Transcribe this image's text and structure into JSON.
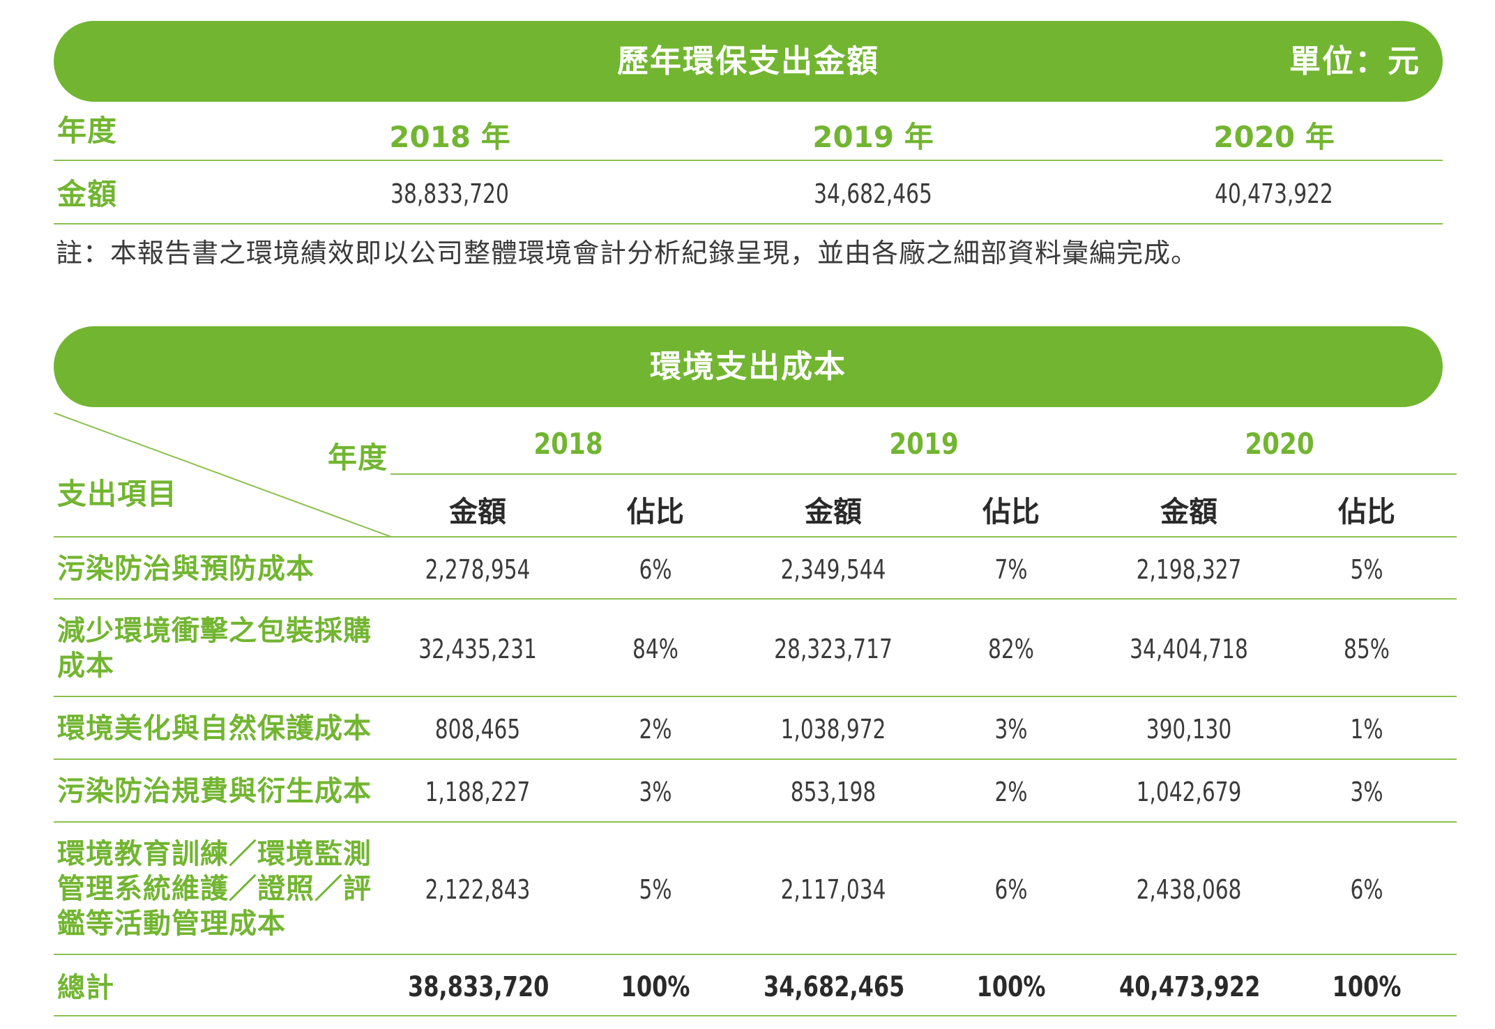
{
  "table1": {
    "title": "歷年環保支出金額",
    "unit": "單位：元",
    "row_year_label": "年度",
    "row_amount_label": "金額",
    "years": [
      "2018 年",
      "2019 年",
      "2020 年"
    ],
    "amounts": [
      "38,833,720",
      "34,682,465",
      "40,473,922"
    ],
    "note": "註：本報告書之環境績效即以公司整體環境會計分析紀錄呈現，並由各廠之細部資料彙編完成。"
  },
  "table2": {
    "title": "環境支出成本",
    "corner_top": "年度",
    "corner_bottom": "支出項目",
    "years": [
      "2018",
      "2019",
      "2020"
    ],
    "amount_label": "金額",
    "ratio_label": "佔比",
    "rows": [
      {
        "label": "污染防治與預防成本",
        "cells": [
          "2,278,954",
          "6%",
          "2,349,544",
          "7%",
          "2,198,327",
          "5%"
        ]
      },
      {
        "label": "減少環境衝擊之包裝採購成本",
        "cells": [
          "32,435,231",
          "84%",
          "28,323,717",
          "82%",
          "34,404,718",
          "85%"
        ]
      },
      {
        "label": "環境美化與自然保護成本",
        "cells": [
          "808,465",
          "2%",
          "1,038,972",
          "3%",
          "390,130",
          "1%"
        ]
      },
      {
        "label": "污染防治規費與衍生成本",
        "cells": [
          "1,188,227",
          "3%",
          "853,198",
          "2%",
          "1,042,679",
          "3%"
        ]
      },
      {
        "label": "環境教育訓練／環境監測管理系統維護／證照／評鑑等活動管理成本",
        "cells": [
          "2,122,843",
          "5%",
          "2,117,034",
          "6%",
          "2,438,068",
          "6%"
        ]
      }
    ],
    "total": {
      "label": "總計",
      "cells": [
        "38,833,720",
        "100%",
        "34,682,465",
        "100%",
        "40,473,922",
        "100%"
      ]
    }
  },
  "colors": {
    "accent": "#72b531",
    "line": "#8cc04f",
    "text": "#3a3a3a"
  }
}
